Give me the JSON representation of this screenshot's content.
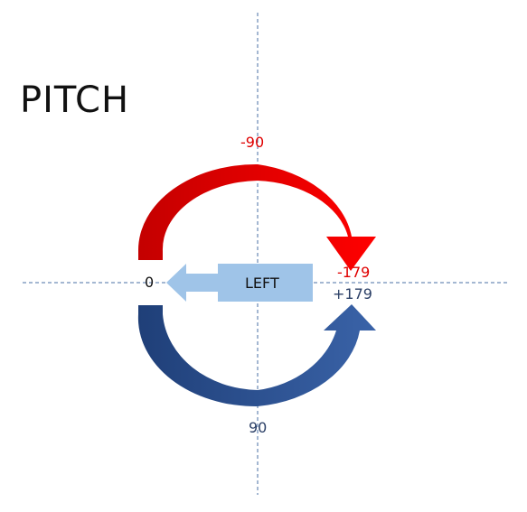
{
  "title": "PITCH",
  "labels": {
    "neg90": "-90",
    "neg179": "-179",
    "pos179": "+179",
    "zero": "0",
    "pos90": "90",
    "direction": "LEFT"
  },
  "colors": {
    "red_arrow": "#e50000",
    "red_arrow_dark": "#c00000",
    "blue_arrow": "#2e5597",
    "blue_arrow_dark": "#1f3f78",
    "left_arrow": "#9fc4e8",
    "axis_line": "#4a6fa5",
    "red_text": "#e00000",
    "blue_text": "#2b3f66"
  }
}
